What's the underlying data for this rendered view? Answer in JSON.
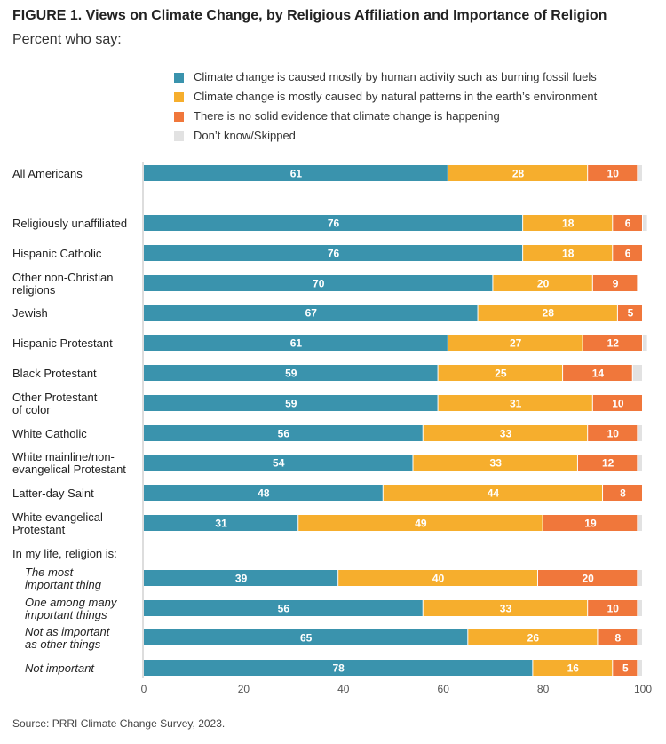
{
  "title": "FIGURE 1.  Views on Climate Change, by Religious Affiliation and Importance of Religion",
  "subtitle": "Percent who say:",
  "source": "Source: PRRI Climate Change Survey, 2023.",
  "chart_data": {
    "type": "bar",
    "orientation": "horizontal",
    "stacked": true,
    "xlim": [
      0,
      100
    ],
    "xticks": [
      0,
      20,
      40,
      60,
      80,
      100
    ],
    "legend_position": "top",
    "series": [
      {
        "name": "Climate change is caused mostly by human activity such as burning fossil fuels",
        "color": "#3a93ad"
      },
      {
        "name": "Climate change is mostly caused by natural patterns in the earth’s environment",
        "color": "#f6ae2d"
      },
      {
        "name": "There is no solid evidence that climate change is happening",
        "color": "#f0773b"
      },
      {
        "name": "Don’t know/Skipped",
        "color": "#e2e2e2"
      }
    ],
    "section_label": "In my life, religion is:",
    "rows": [
      {
        "label": [
          "All Americans"
        ],
        "values": [
          61,
          28,
          10,
          1
        ]
      },
      {
        "label": [
          "Religiously unaffiliated"
        ],
        "values": [
          76,
          18,
          6,
          1
        ]
      },
      {
        "label": [
          "Hispanic Catholic"
        ],
        "values": [
          76,
          18,
          6,
          0
        ]
      },
      {
        "label": [
          "Other non-Christian",
          "religions"
        ],
        "values": [
          70,
          20,
          9,
          0
        ]
      },
      {
        "label": [
          "Jewish"
        ],
        "values": [
          67,
          28,
          5,
          0
        ]
      },
      {
        "label": [
          "Hispanic Protestant"
        ],
        "values": [
          61,
          27,
          12,
          1
        ]
      },
      {
        "label": [
          "Black Protestant"
        ],
        "values": [
          59,
          25,
          14,
          2
        ]
      },
      {
        "label": [
          "Other Protestant",
          "of color"
        ],
        "values": [
          59,
          31,
          10,
          0
        ]
      },
      {
        "label": [
          "White Catholic"
        ],
        "values": [
          56,
          33,
          10,
          1
        ]
      },
      {
        "label": [
          "White mainline/non-",
          "evangelical Protestant"
        ],
        "values": [
          54,
          33,
          12,
          1
        ]
      },
      {
        "label": [
          "Latter-day Saint"
        ],
        "values": [
          48,
          44,
          8,
          0
        ]
      },
      {
        "label": [
          "White evangelical",
          "Protestant"
        ],
        "values": [
          31,
          49,
          19,
          1
        ]
      },
      {
        "label": [
          "The most",
          "important thing"
        ],
        "values": [
          39,
          40,
          20,
          1
        ],
        "italic": true
      },
      {
        "label": [
          "One among many",
          "important things"
        ],
        "values": [
          56,
          33,
          10,
          1
        ],
        "italic": true
      },
      {
        "label": [
          "Not as important",
          "as other things"
        ],
        "values": [
          65,
          26,
          8,
          1
        ],
        "italic": true
      },
      {
        "label": [
          "Not important"
        ],
        "values": [
          78,
          16,
          5,
          1
        ],
        "italic": true
      }
    ]
  }
}
